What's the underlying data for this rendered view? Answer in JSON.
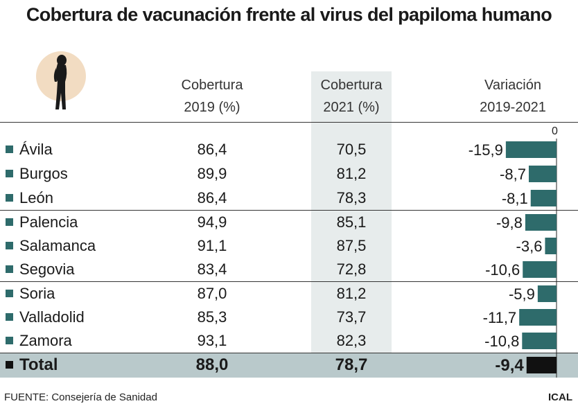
{
  "title": "Cobertura de vacunación frente al virus del papiloma humano",
  "headers": {
    "col_2019": [
      "Cobertura",
      "2019 (%)"
    ],
    "col_2021": [
      "Cobertura",
      "2021 (%)"
    ],
    "col_variation": [
      "Variación",
      "2019-2021"
    ]
  },
  "footer": {
    "source": "FUENTE: Consejería de Sanidad",
    "brand": "ICAL"
  },
  "colors": {
    "bar": "#2e6b6b",
    "total_bar": "#111111",
    "highlight_column": "#e7ecec",
    "total_row": "#b9c9cb"
  },
  "chart_data": {
    "type": "table",
    "title": "Cobertura de vacunación frente al virus del papiloma humano",
    "zero_label": "0",
    "rows": [
      {
        "name": "Ávila",
        "cov2019": "86,4",
        "cov2021": "70,5",
        "variation": -15.9,
        "variation_label": "-15,9"
      },
      {
        "name": "Burgos",
        "cov2019": "89,9",
        "cov2021": "81,2",
        "variation": -8.7,
        "variation_label": "-8,7"
      },
      {
        "name": "León",
        "cov2019": "86,4",
        "cov2021": "78,3",
        "variation": -8.1,
        "variation_label": "-8,1"
      },
      {
        "name": "Palencia",
        "cov2019": "94,9",
        "cov2021": "85,1",
        "variation": -9.8,
        "variation_label": "-9,8"
      },
      {
        "name": "Salamanca",
        "cov2019": "91,1",
        "cov2021": "87,5",
        "variation": -3.6,
        "variation_label": "-3,6"
      },
      {
        "name": "Segovia",
        "cov2019": "83,4",
        "cov2021": "72,8",
        "variation": -10.6,
        "variation_label": "-10,6"
      },
      {
        "name": "Soria",
        "cov2019": "87,0",
        "cov2021": "81,2",
        "variation": -5.9,
        "variation_label": "-5,9"
      },
      {
        "name": "Valladolid",
        "cov2019": "85,3",
        "cov2021": "73,7",
        "variation": -11.7,
        "variation_label": "-11,7"
      },
      {
        "name": "Zamora",
        "cov2019": "93,1",
        "cov2021": "82,3",
        "variation": -10.8,
        "variation_label": "-10,8"
      }
    ],
    "total": {
      "name": "Total",
      "cov2019": "88,0",
      "cov2021": "78,7",
      "variation": -9.4,
      "variation_label": "-9,4"
    }
  }
}
